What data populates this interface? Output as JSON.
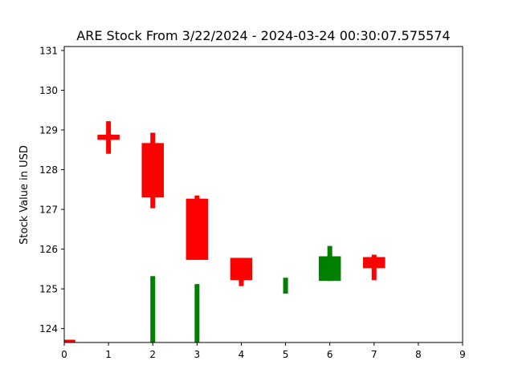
{
  "chart_data": {
    "type": "candlestick",
    "title": "ARE Stock From 3/22/2024 - 2024-03-24 00:30:07.575574",
    "xlabel": "",
    "ylabel": "Stock Value in USD",
    "xlim": [
      0,
      9
    ],
    "ylim": [
      123.65,
      131.1
    ],
    "x_ticks": [
      "0",
      "1",
      "2",
      "3",
      "4",
      "5",
      "6",
      "7",
      "8",
      "9"
    ],
    "y_ticks": [
      "124",
      "125",
      "126",
      "127",
      "128",
      "129",
      "130",
      "131"
    ],
    "up_color": "#008000",
    "down_color": "#ff0000",
    "candles": [
      {
        "x": 0,
        "open": 123.72,
        "high": 123.72,
        "low": 123.65,
        "close": 123.65
      },
      {
        "x": 1,
        "open": 128.88,
        "high": 129.22,
        "low": 128.4,
        "close": 128.75
      },
      {
        "x": 2,
        "open": 128.67,
        "high": 128.93,
        "low": 127.03,
        "close": 127.3
      },
      {
        "x": 3,
        "open": 127.27,
        "high": 127.35,
        "low": 125.73,
        "close": 125.73
      },
      {
        "x": 4,
        "open": 125.78,
        "high": 125.78,
        "low": 125.07,
        "close": 125.22
      },
      {
        "x": 6,
        "open": 125.2,
        "high": 126.08,
        "low": 125.2,
        "close": 125.82
      },
      {
        "x": 7,
        "open": 125.8,
        "high": 125.86,
        "low": 125.22,
        "close": 125.52
      }
    ],
    "volume_bars": [
      {
        "x": 2,
        "top": 125.32
      },
      {
        "x": 3,
        "top": 125.12
      },
      {
        "x": 5,
        "top": 125.28,
        "bottom": 124.88
      }
    ]
  }
}
